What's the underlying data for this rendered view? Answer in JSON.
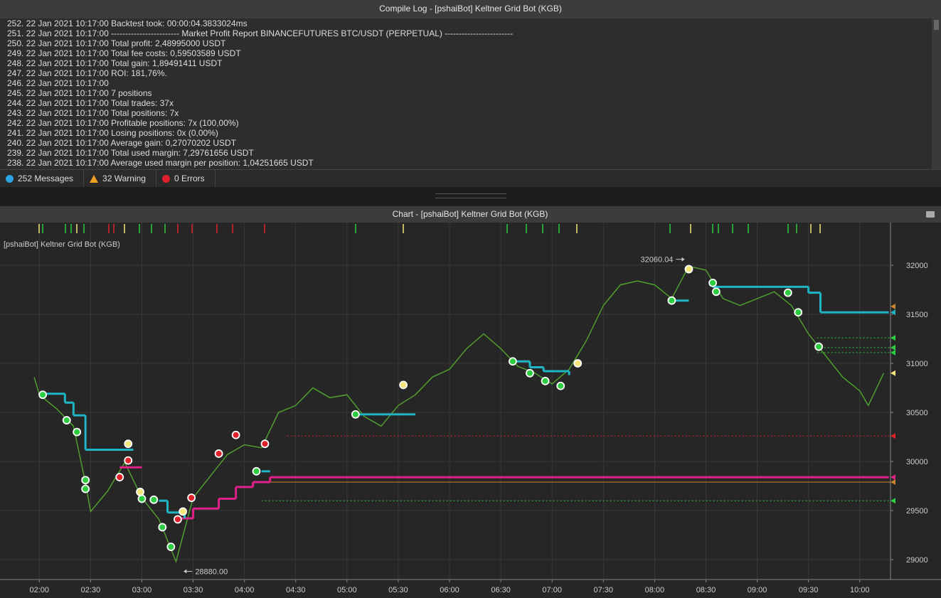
{
  "log": {
    "title": "Compile Log - [pshaiBot] Keltner Grid Bot (KGB)",
    "lines": [
      "252. 22 Jan 2021 10:17:00 Backtest took: 00:00:04.3833024ms",
      "251. 22 Jan 2021 10:17:00 ------------------------ Market Profit Report BINANCEFUTURES BTC/USDT (PERPETUAL) ------------------------",
      "250. 22 Jan 2021 10:17:00 Total profit: 2,48995000 USDT",
      "249. 22 Jan 2021 10:17:00 Total fee costs: 0,59503589 USDT",
      "248. 22 Jan 2021 10:17:00 Total gain: 1,89491411 USDT",
      "247. 22 Jan 2021 10:17:00 ROI: 181,76%.",
      "246. 22 Jan 2021 10:17:00",
      "245. 22 Jan 2021 10:17:00 7 positions",
      "244. 22 Jan 2021 10:17:00 Total trades: 37x",
      "243. 22 Jan 2021 10:17:00 Total positions: 7x",
      "242. 22 Jan 2021 10:17:00 Profitable positions: 7x (100,00%)",
      "241. 22 Jan 2021 10:17:00 Losing positions: 0x (0,00%)",
      "240. 22 Jan 2021 10:17:00 Average gain: 0,27070202 USDT",
      "239. 22 Jan 2021 10:17:00 Total used margin: 7,29761656 USDT",
      "238. 22 Jan 2021 10:17:00 Average used margin per position: 1,04251665 USDT"
    ],
    "status": {
      "messages": "252 Messages",
      "warnings": "32 Warning",
      "errors": "0 Errors"
    }
  },
  "chart_panel": {
    "title": "Chart - [pshaiBot] Keltner Grid Bot (KGB)",
    "label": "[pshaiBot] Keltner Grid Bot (KGB)"
  },
  "chart_data": {
    "type": "line",
    "xlim": [
      "01:37",
      "10:18"
    ],
    "xticks": [
      "02:00",
      "02:30",
      "03:00",
      "03:30",
      "04:00",
      "04:30",
      "05:00",
      "05:30",
      "06:00",
      "06:30",
      "07:00",
      "07:30",
      "08:00",
      "08:30",
      "09:00",
      "09:30",
      "10:00"
    ],
    "ylim": [
      28797,
      32435
    ],
    "yticks": [
      29000,
      29500,
      30000,
      30500,
      31000,
      31500,
      32000
    ],
    "grid": true,
    "price": {
      "color": "#4f9e2e",
      "x": [
        "01:57",
        "02:00",
        "02:10",
        "02:20",
        "02:27",
        "02:30",
        "02:40",
        "02:50",
        "03:00",
        "03:10",
        "03:20",
        "03:30",
        "03:40",
        "03:50",
        "04:00",
        "04:10",
        "04:20",
        "04:30",
        "04:40",
        "04:50",
        "05:00",
        "05:10",
        "05:20",
        "05:30",
        "05:40",
        "05:50",
        "06:00",
        "06:10",
        "06:20",
        "06:30",
        "06:40",
        "06:50",
        "07:00",
        "07:10",
        "07:20",
        "07:30",
        "07:40",
        "07:50",
        "08:00",
        "08:10",
        "08:20",
        "08:30",
        "08:40",
        "08:50",
        "09:00",
        "09:10",
        "09:20",
        "09:30",
        "09:40",
        "09:50",
        "10:00",
        "10:05",
        "10:14"
      ],
      "values": [
        30860,
        30680,
        30540,
        30360,
        29780,
        29490,
        29700,
        29990,
        29630,
        29410,
        28980,
        29630,
        29850,
        30070,
        30170,
        30140,
        30500,
        30570,
        30750,
        30650,
        30680,
        30460,
        30360,
        30570,
        30680,
        30860,
        30940,
        31150,
        31300,
        31150,
        30970,
        30900,
        30790,
        30940,
        31230,
        31590,
        31800,
        31840,
        31800,
        31660,
        31990,
        31950,
        31660,
        31590,
        31660,
        31730,
        31590,
        31300,
        31080,
        30860,
        30720,
        30570,
        30900
      ]
    },
    "steps": [
      {
        "color": "#e0218a",
        "x": [
          "02:47",
          "03:00",
          null,
          "03:22",
          "03:30",
          "03:45",
          "03:55",
          "04:05",
          "04:15",
          "10:17"
        ],
        "values": [
          29940,
          29940,
          null,
          29420,
          29520,
          29620,
          29740,
          29790,
          29840,
          29840
        ]
      },
      {
        "color": "#1fb5c4",
        "x": [
          "02:00",
          "02:15",
          "02:20",
          "02:27",
          "02:55",
          null,
          "03:10",
          "03:15",
          "03:25",
          null,
          "04:10",
          "04:15",
          null,
          "05:05",
          "05:40",
          null,
          "06:37",
          "06:47",
          "06:55",
          "07:10",
          null,
          "08:10",
          "08:20",
          null,
          "08:34",
          "09:20",
          "09:30",
          "09:37",
          "10:17"
        ],
        "values": [
          30690,
          30600,
          30470,
          30120,
          30120,
          null,
          29600,
          29480,
          29420,
          null,
          29900,
          29900,
          null,
          30480,
          30480,
          null,
          31020,
          30960,
          30920,
          30880,
          null,
          31640,
          31640,
          null,
          31780,
          31780,
          31720,
          31520,
          31520
        ]
      }
    ],
    "trades": {
      "x": [
        "02:02",
        "02:16",
        "02:22",
        "02:27",
        "02:27",
        "02:47",
        "02:52",
        "02:52",
        "02:59",
        "03:00",
        "03:07",
        "03:12",
        "03:17",
        "03:21",
        "03:24",
        "03:29",
        "03:45",
        "03:55",
        "04:07",
        "04:12",
        "05:05",
        "05:33",
        "06:37",
        "06:47",
        "06:56",
        "07:05",
        "07:15",
        "08:10",
        "08:20",
        "08:34",
        "08:36",
        "09:18",
        "09:24",
        "09:36"
      ],
      "values": [
        30680,
        30420,
        30300,
        29810,
        29720,
        29840,
        30010,
        30180,
        29690,
        29620,
        29610,
        29330,
        29130,
        29410,
        29490,
        29630,
        30080,
        30270,
        29900,
        30180,
        30480,
        30780,
        31020,
        30900,
        30820,
        30770,
        31000,
        31640,
        31960,
        31820,
        31730,
        31720,
        31520,
        31170
      ],
      "colors": [
        "#2ecc40",
        "#2ecc40",
        "#2ecc40",
        "#2ecc40",
        "#2ecc40",
        "#e0202a",
        "#e0202a",
        "#f5e67a",
        "#f5e67a",
        "#2ecc40",
        "#2ecc40",
        "#2ecc40",
        "#2ecc40",
        "#e0202a",
        "#f5e67a",
        "#e0202a",
        "#e0202a",
        "#e0202a",
        "#2ecc40",
        "#e0202a",
        "#2ecc40",
        "#f5e67a",
        "#2ecc40",
        "#2ecc40",
        "#2ecc40",
        "#2ecc40",
        "#f5e67a",
        "#2ecc40",
        "#f5e67a",
        "#2ecc40",
        "#2ecc40",
        "#2ecc40",
        "#2ecc40",
        "#2ecc40"
      ]
    },
    "levels": [
      {
        "value": 31580,
        "color": "#c8842a",
        "line": "none"
      },
      {
        "value": 31520,
        "color": "#1fb5c4",
        "line": "none"
      },
      {
        "value": 31260,
        "color": "#2ecc40",
        "line": "dotted",
        "from": "09:35"
      },
      {
        "value": 31160,
        "color": "#2ecc40",
        "line": "dotted",
        "from": "09:35"
      },
      {
        "value": 31110,
        "color": "#2ecc40",
        "line": "dotted",
        "from": "09:35"
      },
      {
        "value": 30900,
        "color": "#f5e67a",
        "line": "none"
      },
      {
        "value": 30260,
        "color": "#e0202a",
        "line": "dotted",
        "from": "04:25"
      },
      {
        "value": 29840,
        "color": "#e0218a",
        "line": "none"
      },
      {
        "value": 29790,
        "color": "#c8842a",
        "line": "solid",
        "from": "04:15"
      },
      {
        "value": 29600,
        "color": "#2ecc40",
        "line": "dotted",
        "from": "04:10"
      }
    ],
    "annotations": [
      {
        "label": "32060.04",
        "x": "08:20",
        "value": 32060.04,
        "side": "left"
      },
      {
        "label": "28880.00",
        "x": "03:22",
        "value": 28880,
        "side": "right"
      }
    ]
  }
}
